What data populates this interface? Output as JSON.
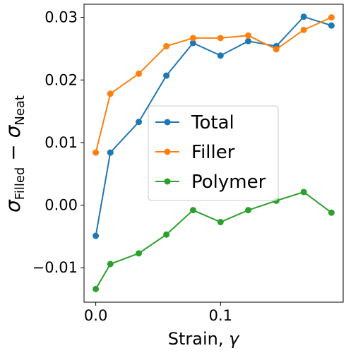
{
  "chart_data": {
    "type": "line",
    "x": [
      0.0,
      0.0117,
      0.0345,
      0.0566,
      0.078,
      0.1,
      0.1222,
      0.1447,
      0.1667,
      0.1889
    ],
    "series": [
      {
        "name": "Total",
        "color": "#1f77b4",
        "values": [
          -0.0049,
          0.0084,
          0.0133,
          0.0207,
          0.0259,
          0.0239,
          0.0262,
          0.0254,
          0.0301,
          0.0287
        ]
      },
      {
        "name": "Filler",
        "color": "#ff7f0e",
        "values": [
          0.0084,
          0.0178,
          0.021,
          0.0254,
          0.0267,
          0.0267,
          0.0271,
          0.0249,
          0.028,
          0.03
        ]
      },
      {
        "name": "Polymer",
        "color": "#2ca02c",
        "values": [
          -0.0134,
          -0.0094,
          -0.0077,
          -0.0047,
          -0.0008,
          -0.0027,
          -0.0008,
          0.0007,
          0.0021,
          -0.0012
        ]
      }
    ],
    "xlabel_text": "Strain, ",
    "xlabel_symbol": "γ",
    "ylabel": {
      "main1": "σ",
      "sub1": "Filled",
      "minus": " − ",
      "main2": "σ",
      "sub2": "Neat"
    },
    "x_ticks": [
      {
        "value": 0.0,
        "label": "0.0"
      },
      {
        "value": 0.1,
        "label": "0.1"
      }
    ],
    "y_ticks": [
      {
        "value": -0.01,
        "label": "−0.01"
      },
      {
        "value": 0.0,
        "label": "0.00"
      },
      {
        "value": 0.01,
        "label": "0.01"
      },
      {
        "value": 0.02,
        "label": "0.02"
      },
      {
        "value": 0.03,
        "label": "0.03"
      }
    ],
    "xlim": [
      -0.0094,
      0.1983
    ],
    "ylim": [
      -0.0155,
      0.0321
    ],
    "grid": false,
    "legend_position": "center"
  }
}
